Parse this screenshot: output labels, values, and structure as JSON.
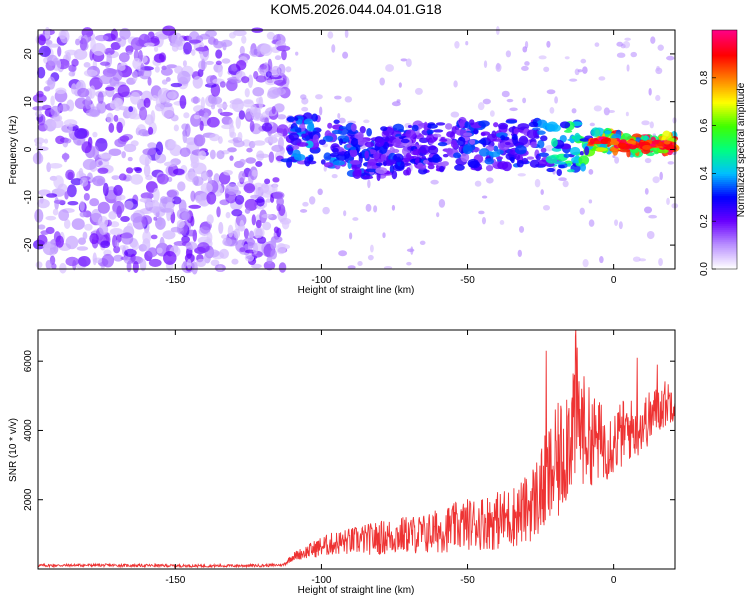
{
  "title": "KOM5.2026.044.04.01.G18",
  "chart_data": [
    {
      "type": "heatmap",
      "xlabel": "Height of straight line (km)",
      "ylabel": "Frequency (Hz)",
      "xlim": [
        -197,
        21
      ],
      "ylim": [
        -25,
        25
      ],
      "xticks": [
        -150,
        -100,
        -50,
        0
      ],
      "yticks": [
        -20,
        -10,
        0,
        10,
        20
      ],
      "colorbar": {
        "label": "Normalized spectral amplitude",
        "range": [
          0,
          1
        ],
        "ticks": [
          "0.0",
          "0.2",
          "0.4",
          "0.6",
          "0.8"
        ],
        "colormap": [
          "#ffffff",
          "#b990ff",
          "#6a00ff",
          "#0000ff",
          "#00bfff",
          "#00ff80",
          "#40ff00",
          "#ffff00",
          "#ff8000",
          "#ff0000",
          "#ff0080"
        ]
      },
      "ridge": [
        {
          "x": -110,
          "f": 2,
          "amp": 0.35
        },
        {
          "x": -100,
          "f": 2,
          "amp": 0.4
        },
        {
          "x": -85,
          "f": -1,
          "amp": 0.3
        },
        {
          "x": -70,
          "f": 0,
          "amp": 0.3
        },
        {
          "x": -55,
          "f": 1,
          "amp": 0.3
        },
        {
          "x": -40,
          "f": 1,
          "amp": 0.35
        },
        {
          "x": -30,
          "f": 2,
          "amp": 0.3
        },
        {
          "x": -20,
          "f": 0,
          "amp": 0.45
        },
        {
          "x": -10,
          "f": 1,
          "amp": 0.55
        },
        {
          "x": -5,
          "f": 2,
          "amp": 0.8
        },
        {
          "x": 5,
          "f": 1,
          "amp": 0.85
        },
        {
          "x": 20,
          "f": 1,
          "amp": 0.95
        }
      ]
    },
    {
      "type": "line",
      "xlabel": "Height of straight line (km)",
      "ylabel": "SNR (10 * v/v)",
      "xlim": [
        -197,
        21
      ],
      "ylim": [
        0,
        6900
      ],
      "xticks": [
        -150,
        -100,
        -50,
        0
      ],
      "yticks": [
        2000,
        4000,
        6000
      ],
      "color": "#ee3333",
      "series": [
        {
          "x": [
            -197,
            -180,
            -160,
            -140,
            -120,
            -113,
            -110,
            -105,
            -100,
            -95,
            -90,
            -85,
            -80,
            -75,
            -70,
            -65,
            -60,
            -55,
            -50,
            -45,
            -40,
            -35,
            -30,
            -28,
            -25,
            -23,
            -20,
            -18,
            -16,
            -14,
            -13,
            -12,
            -10,
            -8,
            -5,
            -3,
            0,
            3,
            5,
            8,
            10,
            13,
            15,
            18,
            21
          ],
          "y": [
            100,
            110,
            100,
            90,
            100,
            120,
            350,
            500,
            650,
            750,
            800,
            850,
            900,
            950,
            1000,
            1000,
            1100,
            1200,
            1300,
            1350,
            1400,
            1500,
            1700,
            1900,
            2200,
            2500,
            2900,
            3200,
            3800,
            4300,
            4500,
            4300,
            4000,
            3800,
            3700,
            3600,
            3700,
            3900,
            4000,
            4100,
            4200,
            4400,
            4600,
            4800,
            4900
          ],
          "spread": [
            40,
            40,
            40,
            40,
            40,
            40,
            120,
            200,
            300,
            350,
            400,
            450,
            500,
            550,
            550,
            600,
            650,
            700,
            750,
            800,
            850,
            900,
            1000,
            1100,
            1300,
            1500,
            1700,
            1800,
            1900,
            2000,
            2300,
            1900,
            1600,
            1400,
            1200,
            1100,
            1000,
            1000,
            900,
            900,
            800,
            800,
            700,
            700,
            600
          ]
        }
      ],
      "peaks": [
        {
          "x": -23,
          "y": 6300
        },
        {
          "x": -13,
          "y": 6900
        },
        {
          "x": 8,
          "y": 6100
        },
        {
          "x": 15,
          "y": 5900
        }
      ]
    }
  ]
}
